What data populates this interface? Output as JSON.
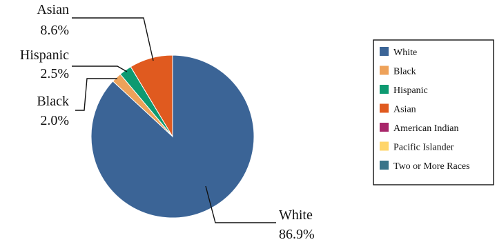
{
  "chart_data": {
    "type": "pie",
    "title": "",
    "slices": [
      {
        "label": "White",
        "value": 86.9,
        "value_label": "86.9%",
        "color": "#3B6496"
      },
      {
        "label": "Black",
        "value": 2.0,
        "value_label": "2.0%",
        "color": "#EEA25A"
      },
      {
        "label": "Hispanic",
        "value": 2.5,
        "value_label": "2.5%",
        "color": "#0E9A71"
      },
      {
        "label": "Asian",
        "value": 8.6,
        "value_label": "8.6%",
        "color": "#E05A1F"
      },
      {
        "label": "American Indian",
        "value": 0,
        "value_label": "",
        "color": "#A8266A"
      },
      {
        "label": "Pacific Islander",
        "value": 0,
        "value_label": "",
        "color": "#FFD56A"
      },
      {
        "label": "Two or More Races",
        "value": 0,
        "value_label": "",
        "color": "#3A7489"
      }
    ],
    "legend": {
      "position": "right",
      "items": [
        "White",
        "Black",
        "Hispanic",
        "Asian",
        "American Indian",
        "Pacific Islander",
        "Two or More Races"
      ]
    }
  }
}
